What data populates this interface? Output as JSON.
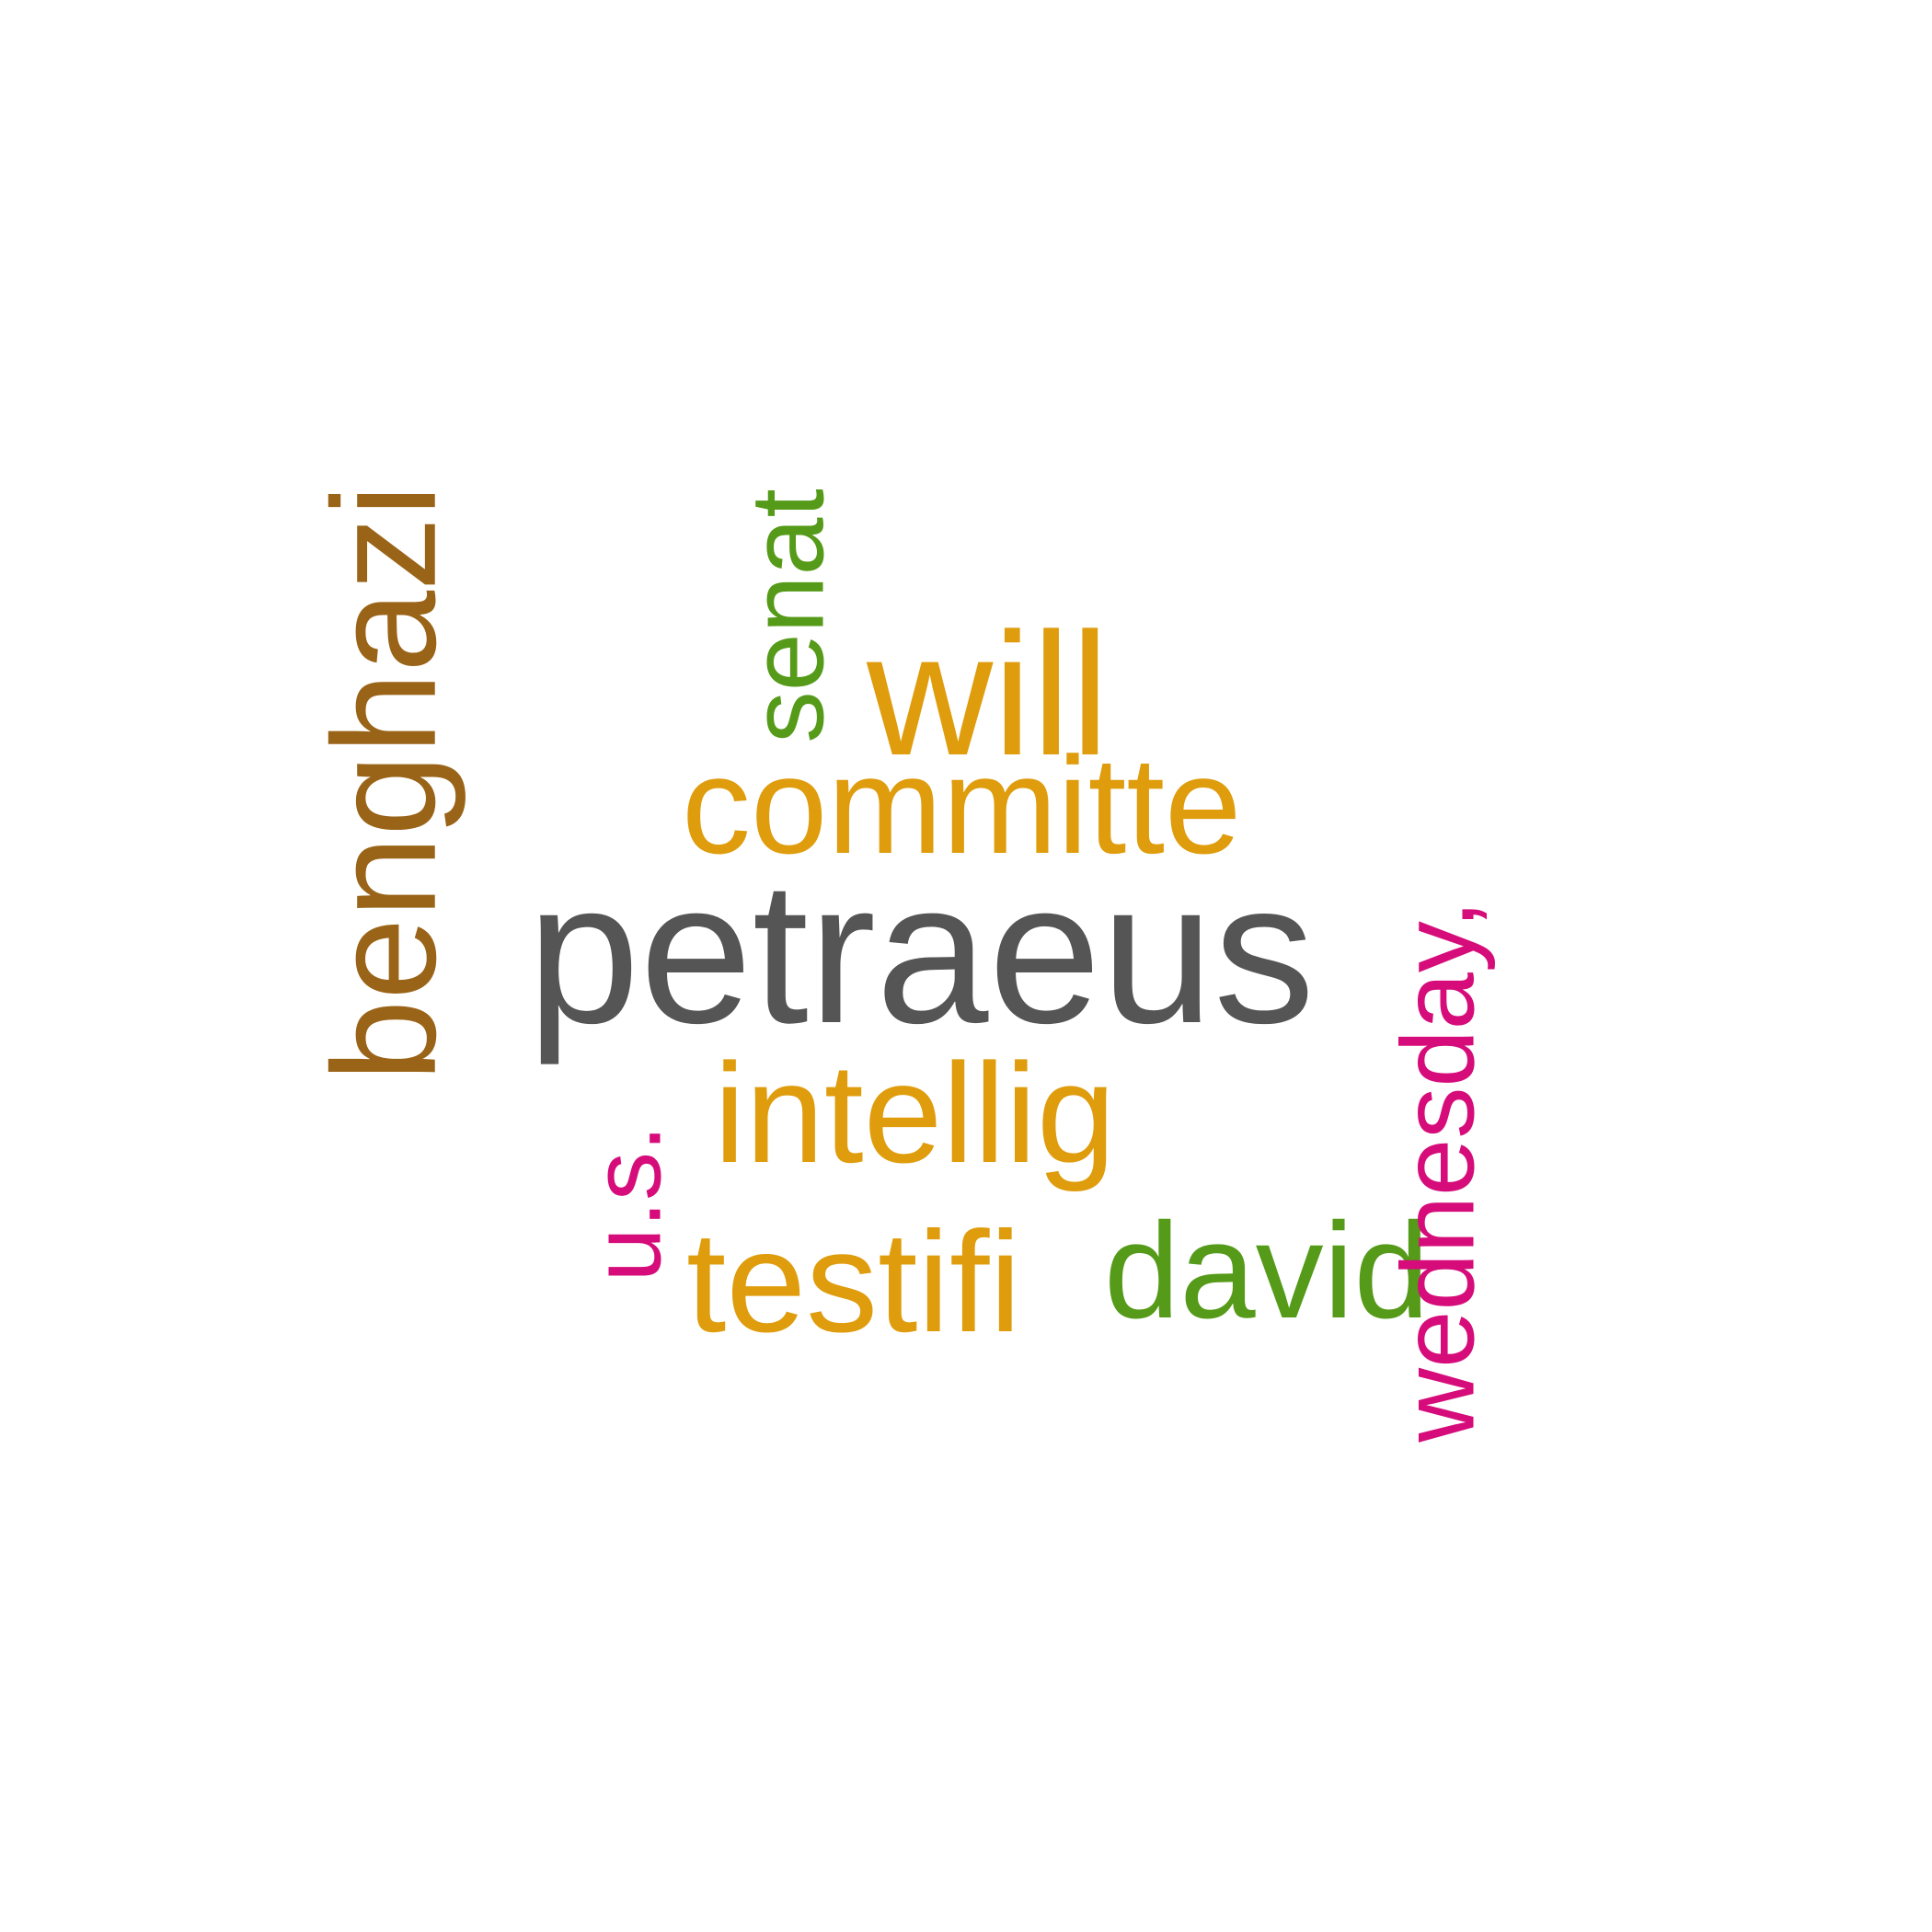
{
  "words": [
    {
      "text": "petraeus",
      "color": "#555555"
    },
    {
      "text": "benghazi",
      "color": "#9a6418"
    },
    {
      "text": "committe",
      "color": "#df9c0c"
    },
    {
      "text": "will",
      "color": "#df9c0c"
    },
    {
      "text": "senat",
      "color": "#559a18"
    },
    {
      "text": "intellig",
      "color": "#df9c0c"
    },
    {
      "text": "testifi",
      "color": "#df9c0c"
    },
    {
      "text": "david",
      "color": "#559a18"
    },
    {
      "text": "u.s.",
      "color": "#d50c7a"
    },
    {
      "text": "wednesday,",
      "color": "#d50c7a"
    }
  ]
}
